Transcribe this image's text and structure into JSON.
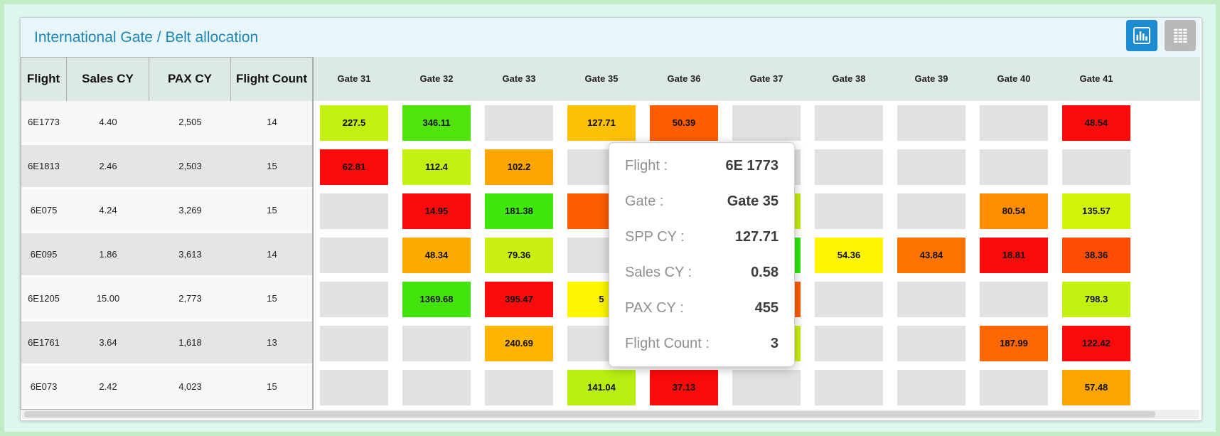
{
  "window": {
    "title": "International Gate / Belt allocation"
  },
  "toolbar": {
    "buttons": [
      {
        "id": "chart-view",
        "icon": "bar-chart-icon",
        "active": true
      },
      {
        "id": "grid-view",
        "icon": "table-grid-icon",
        "active": false
      }
    ]
  },
  "colors": {
    "accent_blue": "#1d8bd1",
    "inactive_gray": "#b9b9b9",
    "title_text": "#1d86b5",
    "empty_cell": "#e1e1e1",
    "row_alt_light": "#f8f8f8",
    "row_alt_dark": "#e5e5e5"
  },
  "table": {
    "left_headers": [
      "Flight",
      "Sales CY",
      "PAX CY",
      "Flight Count"
    ],
    "gate_headers": [
      "Gate 31",
      "Gate 32",
      "Gate 33",
      "Gate 35",
      "Gate 36",
      "Gate 37",
      "Gate 38",
      "Gate 39",
      "Gate 40",
      "Gate 41"
    ],
    "rows": [
      {
        "flight": "6E1773",
        "sales_cy": "4.40",
        "pax_cy": "2,505",
        "flight_count": "14",
        "cells": [
          {
            "value": "227.5",
            "color": "#c3ef11"
          },
          {
            "value": "346.11",
            "color": "#50e40b"
          },
          {},
          {
            "value": "127.71",
            "color": "#fdc104"
          },
          {
            "value": "50.39",
            "color": "#fd5d01"
          },
          {},
          {},
          {},
          {},
          {
            "value": "48.54",
            "color": "#f90b0b"
          }
        ]
      },
      {
        "flight": "6E1813",
        "sales_cy": "2.46",
        "pax_cy": "2,503",
        "flight_count": "15",
        "cells": [
          {
            "value": "62.81",
            "color": "#f90b0b"
          },
          {
            "value": "112.4",
            "color": "#c3ef11"
          },
          {
            "value": "102.2",
            "color": "#fda601"
          },
          {},
          {},
          {},
          {},
          {},
          {},
          {}
        ]
      },
      {
        "flight": "6E075",
        "sales_cy": "4.24",
        "pax_cy": "3,269",
        "flight_count": "15",
        "cells": [
          {},
          {
            "value": "14.95",
            "color": "#f90b0b"
          },
          {
            "value": "181.38",
            "color": "#3fe70c"
          },
          {
            "color": "#fd5d01"
          },
          {},
          {
            "color": "#c3ef11"
          },
          {},
          {},
          {
            "value": "80.54",
            "color": "#fd8d01"
          },
          {
            "value": "135.57",
            "color": "#d2f20a"
          }
        ]
      },
      {
        "flight": "6E095",
        "sales_cy": "1.86",
        "pax_cy": "3,613",
        "flight_count": "14",
        "cells": [
          {},
          {
            "value": "48.34",
            "color": "#fdaa01"
          },
          {
            "value": "79.36",
            "color": "#c9f011"
          },
          {},
          {},
          {
            "color": "#2ee70c"
          },
          {
            "value": "54.36",
            "color": "#fdf501"
          },
          {
            "value": "43.84",
            "color": "#fd7301"
          },
          {
            "value": "18.81",
            "color": "#f90b0b"
          },
          {
            "value": "38.36",
            "color": "#fd4d03"
          }
        ]
      },
      {
        "flight": "6E1205",
        "sales_cy": "15.00",
        "pax_cy": "2,773",
        "flight_count": "15",
        "cells": [
          {},
          {
            "value": "1369.68",
            "color": "#43e40d"
          },
          {
            "value": "395.47",
            "color": "#f90b0b"
          },
          {
            "value": "5",
            "color": "#fdf501"
          },
          {},
          {
            "color": "#fd5d01"
          },
          {},
          {},
          {},
          {
            "value": "798.3",
            "color": "#c3ef11"
          }
        ]
      },
      {
        "flight": "6E1761",
        "sales_cy": "3.64",
        "pax_cy": "1,618",
        "flight_count": "13",
        "cells": [
          {},
          {},
          {
            "value": "240.69",
            "color": "#fdb501"
          },
          {},
          {},
          {
            "color": "#c9f011"
          },
          {},
          {},
          {
            "value": "187.99",
            "color": "#fd6601"
          },
          {
            "value": "122.42",
            "color": "#f90b0b"
          }
        ]
      },
      {
        "flight": "6E073",
        "sales_cy": "2.42",
        "pax_cy": "4,023",
        "flight_count": "15",
        "cells": [
          {},
          {},
          {},
          {
            "value": "141.04",
            "color": "#b8ee12"
          },
          {
            "value": "37.13",
            "color": "#f90b0b"
          },
          {},
          {},
          {},
          {},
          {
            "value": "57.48",
            "color": "#fda601"
          }
        ]
      }
    ]
  },
  "tooltip": {
    "rows": [
      {
        "label": "Flight :",
        "value": "6E 1773"
      },
      {
        "label": "Gate :",
        "value": "Gate 35"
      },
      {
        "label": "SPP CY :",
        "value": "127.71"
      },
      {
        "label": "Sales CY :",
        "value": "0.58"
      },
      {
        "label": "PAX CY :",
        "value": "455"
      },
      {
        "label": "Flight Count :",
        "value": "3"
      }
    ]
  }
}
